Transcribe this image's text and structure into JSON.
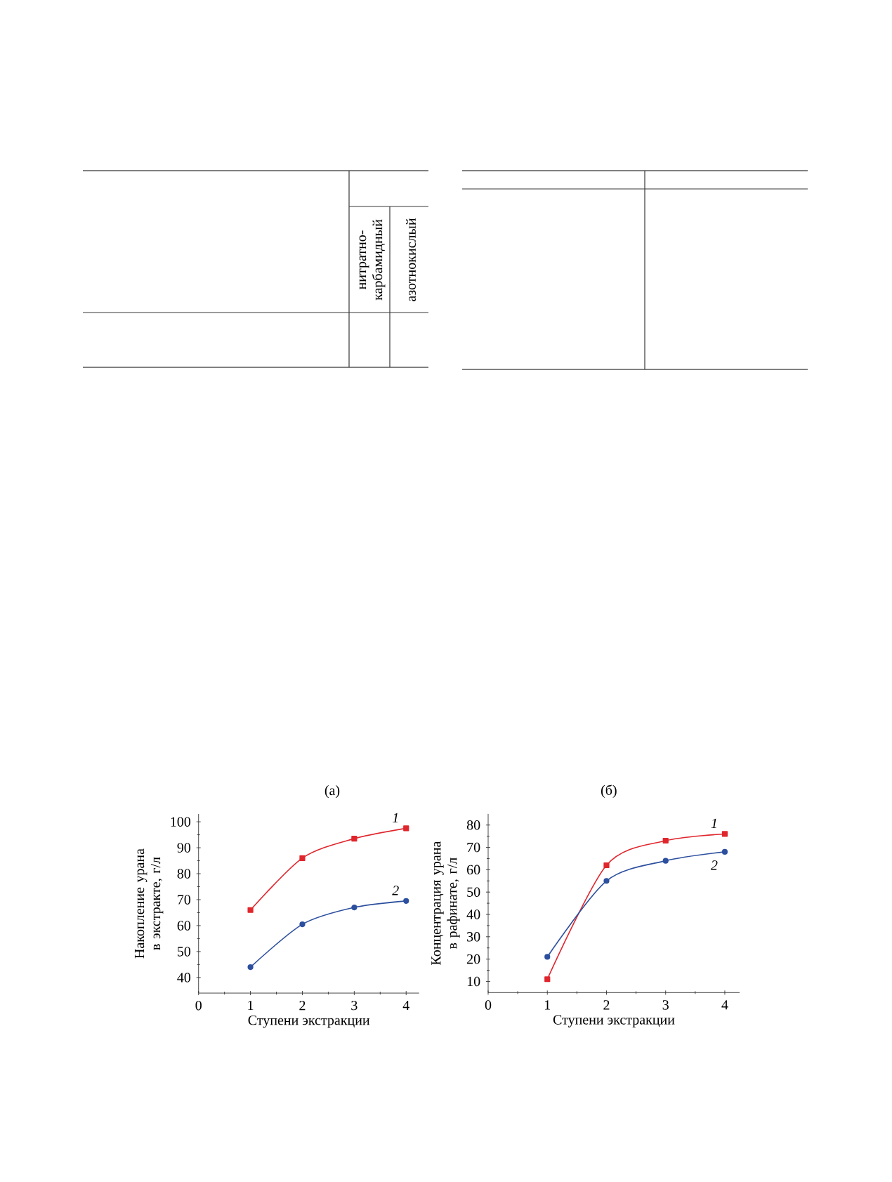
{
  "chart_data": [
    {
      "type": "other",
      "annotations": [
        "нитратно-карбамидный",
        "азотнокислый"
      ]
    },
    {
      "type": "line",
      "title": "(а)",
      "xlabel": "Ступени экстракции",
      "ylabel": "Накопление урана в экстракте, г/л",
      "x": [
        1,
        2,
        3,
        4
      ],
      "series": [
        {
          "name": "1",
          "color": "#e0262d",
          "marker": "square",
          "values": [
            66,
            86,
            93.5,
            97.5
          ]
        },
        {
          "name": "2",
          "color": "#2c4f9e",
          "marker": "circle",
          "values": [
            44,
            60.5,
            67,
            69.5
          ]
        }
      ],
      "xlim": [
        0,
        4.25
      ],
      "ylim": [
        34,
        103
      ],
      "xticks": [
        0,
        {
          "value": 0.5,
          "label": null
        },
        1,
        {
          "value": 1.5,
          "label": null
        },
        2,
        {
          "value": 2.5,
          "label": null
        },
        3,
        {
          "value": 3.5,
          "label": null
        },
        4
      ],
      "yticks": [
        40,
        {
          "value": 45,
          "label": null
        },
        50,
        {
          "value": 55,
          "label": null
        },
        60,
        {
          "value": 65,
          "label": null
        },
        70,
        {
          "value": 75,
          "label": null
        },
        80,
        {
          "value": 85,
          "label": null
        },
        90,
        {
          "value": 95,
          "label": null
        },
        100
      ]
    },
    {
      "type": "line",
      "title": "(б)",
      "xlabel": "Ступени экстракции",
      "ylabel": "Концентрация урана в рафинате, г/л",
      "x": [
        1,
        2,
        3,
        4
      ],
      "series": [
        {
          "name": "1",
          "color": "#e0262d",
          "marker": "square",
          "values": [
            11,
            62,
            73,
            76
          ]
        },
        {
          "name": "2",
          "color": "#2c4f9e",
          "marker": "circle",
          "values": [
            21,
            55,
            64,
            68
          ]
        }
      ],
      "xlim": [
        0,
        4.25
      ],
      "ylim": [
        5,
        85
      ],
      "xticks": [
        0,
        {
          "value": 0.5,
          "label": null
        },
        1,
        {
          "value": 1.5,
          "label": null
        },
        2,
        {
          "value": 2.5,
          "label": null
        },
        3,
        {
          "value": 3.5,
          "label": null
        },
        4
      ],
      "yticks": [
        10,
        {
          "value": 15,
          "label": null
        },
        20,
        {
          "value": 25,
          "label": null
        },
        30,
        {
          "value": 35,
          "label": null
        },
        40,
        {
          "value": 45,
          "label": null
        },
        50,
        {
          "value": 55,
          "label": null
        },
        60,
        {
          "value": 65,
          "label": null
        },
        70,
        {
          "value": 75,
          "label": null
        },
        80
      ]
    }
  ]
}
